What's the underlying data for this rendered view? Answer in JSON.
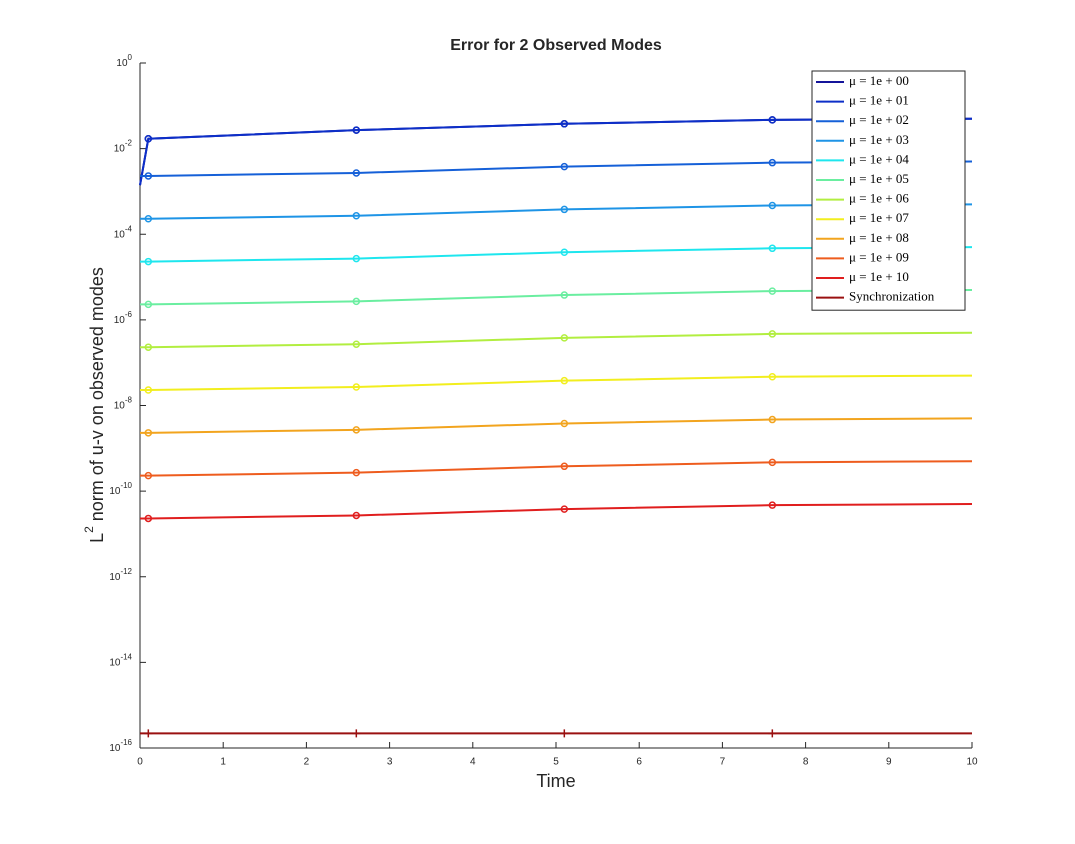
{
  "chart_data": {
    "type": "line",
    "title": "Error for 2 Observed Modes",
    "xlabel": "Time",
    "ylabel": {
      "base": "L",
      "sup": "2",
      "text": " norm of u-v on observed modes"
    },
    "log_y": true,
    "grid": false,
    "legend": "upper right",
    "xlim": [
      0,
      10
    ],
    "xticks": [
      0,
      1,
      2,
      3,
      4,
      5,
      6,
      7,
      8,
      9,
      10
    ],
    "ylim": [
      1e-16,
      1
    ],
    "yticks": [
      {
        "value": 1,
        "label": "10",
        "exponent": "0"
      },
      {
        "value": 0.01,
        "label": "10",
        "exponent": "-2"
      },
      {
        "value": 0.0001,
        "label": "10",
        "exponent": "-4"
      },
      {
        "value": 1e-06,
        "label": "10",
        "exponent": "-6"
      },
      {
        "value": 1e-08,
        "label": "10",
        "exponent": "-8"
      },
      {
        "value": 1e-10,
        "label": "10",
        "exponent": "-10"
      },
      {
        "value": 1e-12,
        "label": "10",
        "exponent": "-12"
      },
      {
        "value": 1e-14,
        "label": "10",
        "exponent": "-14"
      },
      {
        "value": 1e-16,
        "label": "10",
        "exponent": "-16"
      }
    ],
    "x": [
      0,
      0.1,
      2.6,
      5.1,
      7.6,
      10
    ],
    "series": [
      {
        "name": "μ = 1e + 00",
        "color": "#14149a",
        "marker": "o",
        "values": [
          0.0014,
          0.017,
          0.027,
          0.038,
          0.047,
          0.05
        ]
      },
      {
        "name": "μ = 1e + 01",
        "color": "#0d2fc8",
        "marker": "o",
        "values": [
          0.0014,
          0.017,
          0.027,
          0.038,
          0.047,
          0.05
        ]
      },
      {
        "name": "μ = 1e + 02",
        "color": "#1560d8",
        "marker": "o",
        "values": [
          0.0023,
          0.0023,
          0.0027,
          0.0038,
          0.0047,
          0.005
        ]
      },
      {
        "name": "μ = 1e + 03",
        "color": "#1e94e6",
        "marker": "o",
        "values": [
          0.00023,
          0.00023,
          0.00027,
          0.00038,
          0.00047,
          0.0005
        ]
      },
      {
        "name": "μ = 1e + 04",
        "color": "#1ee6ee",
        "marker": "o",
        "values": [
          2.3e-05,
          2.3e-05,
          2.7e-05,
          3.8e-05,
          4.7e-05,
          5e-05
        ]
      },
      {
        "name": "μ = 1e + 05",
        "color": "#6aeea0",
        "marker": "o",
        "values": [
          2.3e-06,
          2.3e-06,
          2.7e-06,
          3.8e-06,
          4.7e-06,
          5e-06
        ]
      },
      {
        "name": "μ = 1e + 06",
        "color": "#b2ee40",
        "marker": "o",
        "values": [
          2.3e-07,
          2.3e-07,
          2.7e-07,
          3.8e-07,
          4.7e-07,
          5e-07
        ]
      },
      {
        "name": "μ = 1e + 07",
        "color": "#f2ee1e",
        "marker": "o",
        "values": [
          2.3e-08,
          2.3e-08,
          2.7e-08,
          3.8e-08,
          4.7e-08,
          5e-08
        ]
      },
      {
        "name": "μ = 1e + 08",
        "color": "#f2a41e",
        "marker": "o",
        "values": [
          2.3e-09,
          2.3e-09,
          2.7e-09,
          3.8e-09,
          4.7e-09,
          5e-09
        ]
      },
      {
        "name": "μ = 1e + 09",
        "color": "#ee5c1e",
        "marker": "o",
        "values": [
          2.3e-10,
          2.3e-10,
          2.7e-10,
          3.8e-10,
          4.7e-10,
          5e-10
        ]
      },
      {
        "name": "μ = 1e + 10",
        "color": "#e01e1e",
        "marker": "o",
        "values": [
          2.3e-11,
          2.3e-11,
          2.7e-11,
          3.8e-11,
          4.7e-11,
          5e-11
        ]
      },
      {
        "name": "Synchronization",
        "color": "#9a1010",
        "marker": "+",
        "values": [
          2.2e-16,
          2.2e-16,
          2.2e-16,
          2.2e-16,
          2.2e-16,
          2.2e-16
        ]
      }
    ]
  }
}
